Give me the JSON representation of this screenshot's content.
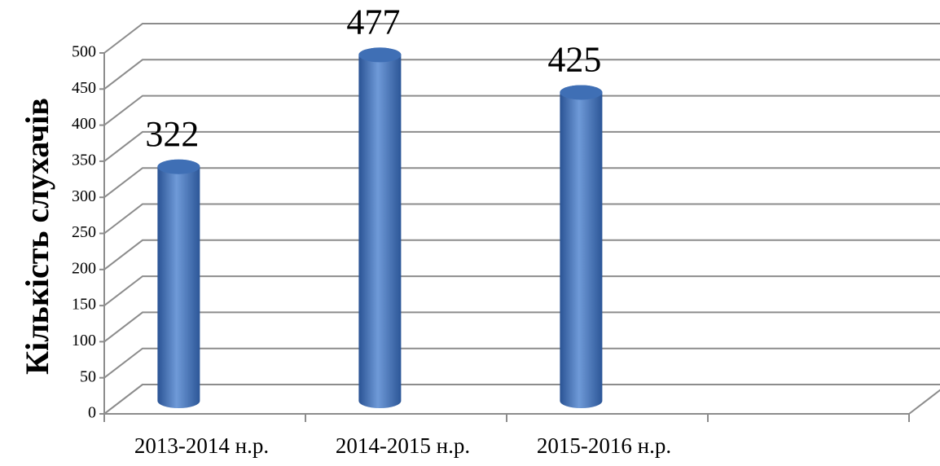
{
  "chart_data": {
    "type": "bar",
    "y_label": "Кількість слухачів",
    "categories": [
      "2013-2014 н.р.",
      "2014-2015 н.р.",
      "2015-2016 н.р.",
      null
    ],
    "values": [
      322,
      477,
      425,
      null
    ],
    "color": "#4a7bc4",
    "ylim": [
      0,
      500
    ],
    "yticks": [
      0,
      50,
      100,
      150,
      200,
      250,
      300,
      350,
      400,
      450,
      500
    ],
    "grid": true
  }
}
